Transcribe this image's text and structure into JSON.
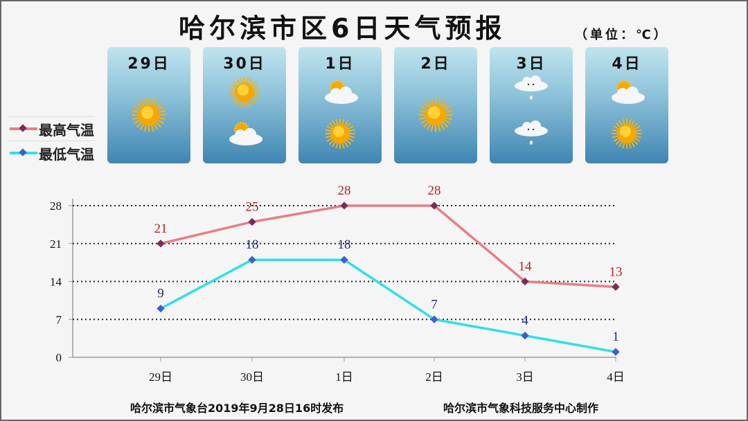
{
  "title": "哈尔滨市区6日天气预报",
  "unit": "（单位：℃）",
  "days": [
    {
      "label": "29日",
      "icons": [
        "sun"
      ]
    },
    {
      "label": "30日",
      "icons": [
        "sun",
        "partly-cloudy"
      ]
    },
    {
      "label": "1日",
      "icons": [
        "partly-cloudy",
        "sun"
      ]
    },
    {
      "label": "2日",
      "icons": [
        "sun"
      ]
    },
    {
      "label": "3日",
      "icons": [
        "cloud-rain",
        "cloud-rain"
      ]
    },
    {
      "label": "4日",
      "icons": [
        "partly-cloudy",
        "sun"
      ]
    }
  ],
  "footer": {
    "left": "哈尔滨市气象台2019年9月28日16时发布",
    "right": "哈尔滨市气象科技服务中心制作"
  },
  "chart_data": {
    "type": "line",
    "categories": [
      "29日",
      "30日",
      "1日",
      "2日",
      "3日",
      "4日"
    ],
    "series": [
      {
        "name": "最高气温",
        "values": [
          21,
          25,
          28,
          28,
          14,
          13
        ],
        "color": "#e57f86",
        "marker": "#7a2a5a",
        "label_color": "#b22222"
      },
      {
        "name": "最低气温",
        "values": [
          9,
          18,
          18,
          7,
          4,
          1
        ],
        "color": "#2ee0e8",
        "marker": "#3b5fd0",
        "label_color": "#1a2a7a"
      }
    ],
    "yticks": [
      0,
      7,
      14,
      21,
      28
    ],
    "ylim": [
      0,
      28
    ],
    "grid": true,
    "legend": "left"
  }
}
